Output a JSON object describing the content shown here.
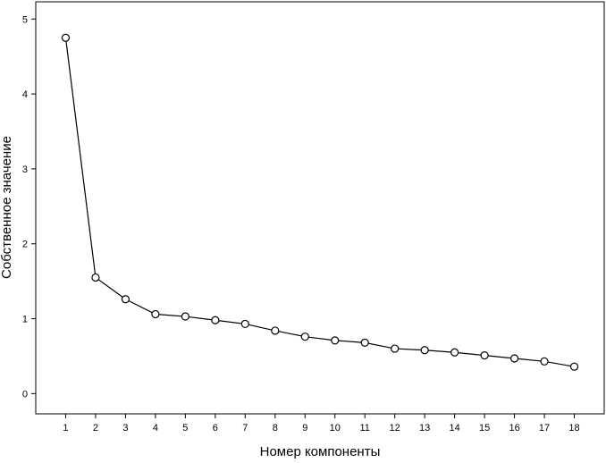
{
  "chart_data": {
    "type": "line",
    "xlabel": "Номер компоненты",
    "ylabel": "Собственное значение",
    "x": [
      1,
      2,
      3,
      4,
      5,
      6,
      7,
      8,
      9,
      10,
      11,
      12,
      13,
      14,
      15,
      16,
      17,
      18
    ],
    "series": [
      {
        "values": [
          4.75,
          1.55,
          1.26,
          1.06,
          1.03,
          0.98,
          0.93,
          0.84,
          0.76,
          0.71,
          0.68,
          0.6,
          0.58,
          0.55,
          0.51,
          0.47,
          0.43,
          0.36
        ]
      }
    ],
    "xlim": [
      0,
      19
    ],
    "ylim": [
      -0.27,
      5.23
    ],
    "x_ticks": [
      "1",
      "2",
      "3",
      "4",
      "5",
      "6",
      "7",
      "8",
      "9",
      "10",
      "11",
      "12",
      "13",
      "14",
      "15",
      "16",
      "17",
      "18"
    ],
    "y_ticks": [
      "0",
      "1",
      "2",
      "3",
      "4",
      "5"
    ],
    "marker": "open-circle",
    "line_color": "#000000",
    "background": "#ffffff",
    "grid": false,
    "legend": "none"
  }
}
